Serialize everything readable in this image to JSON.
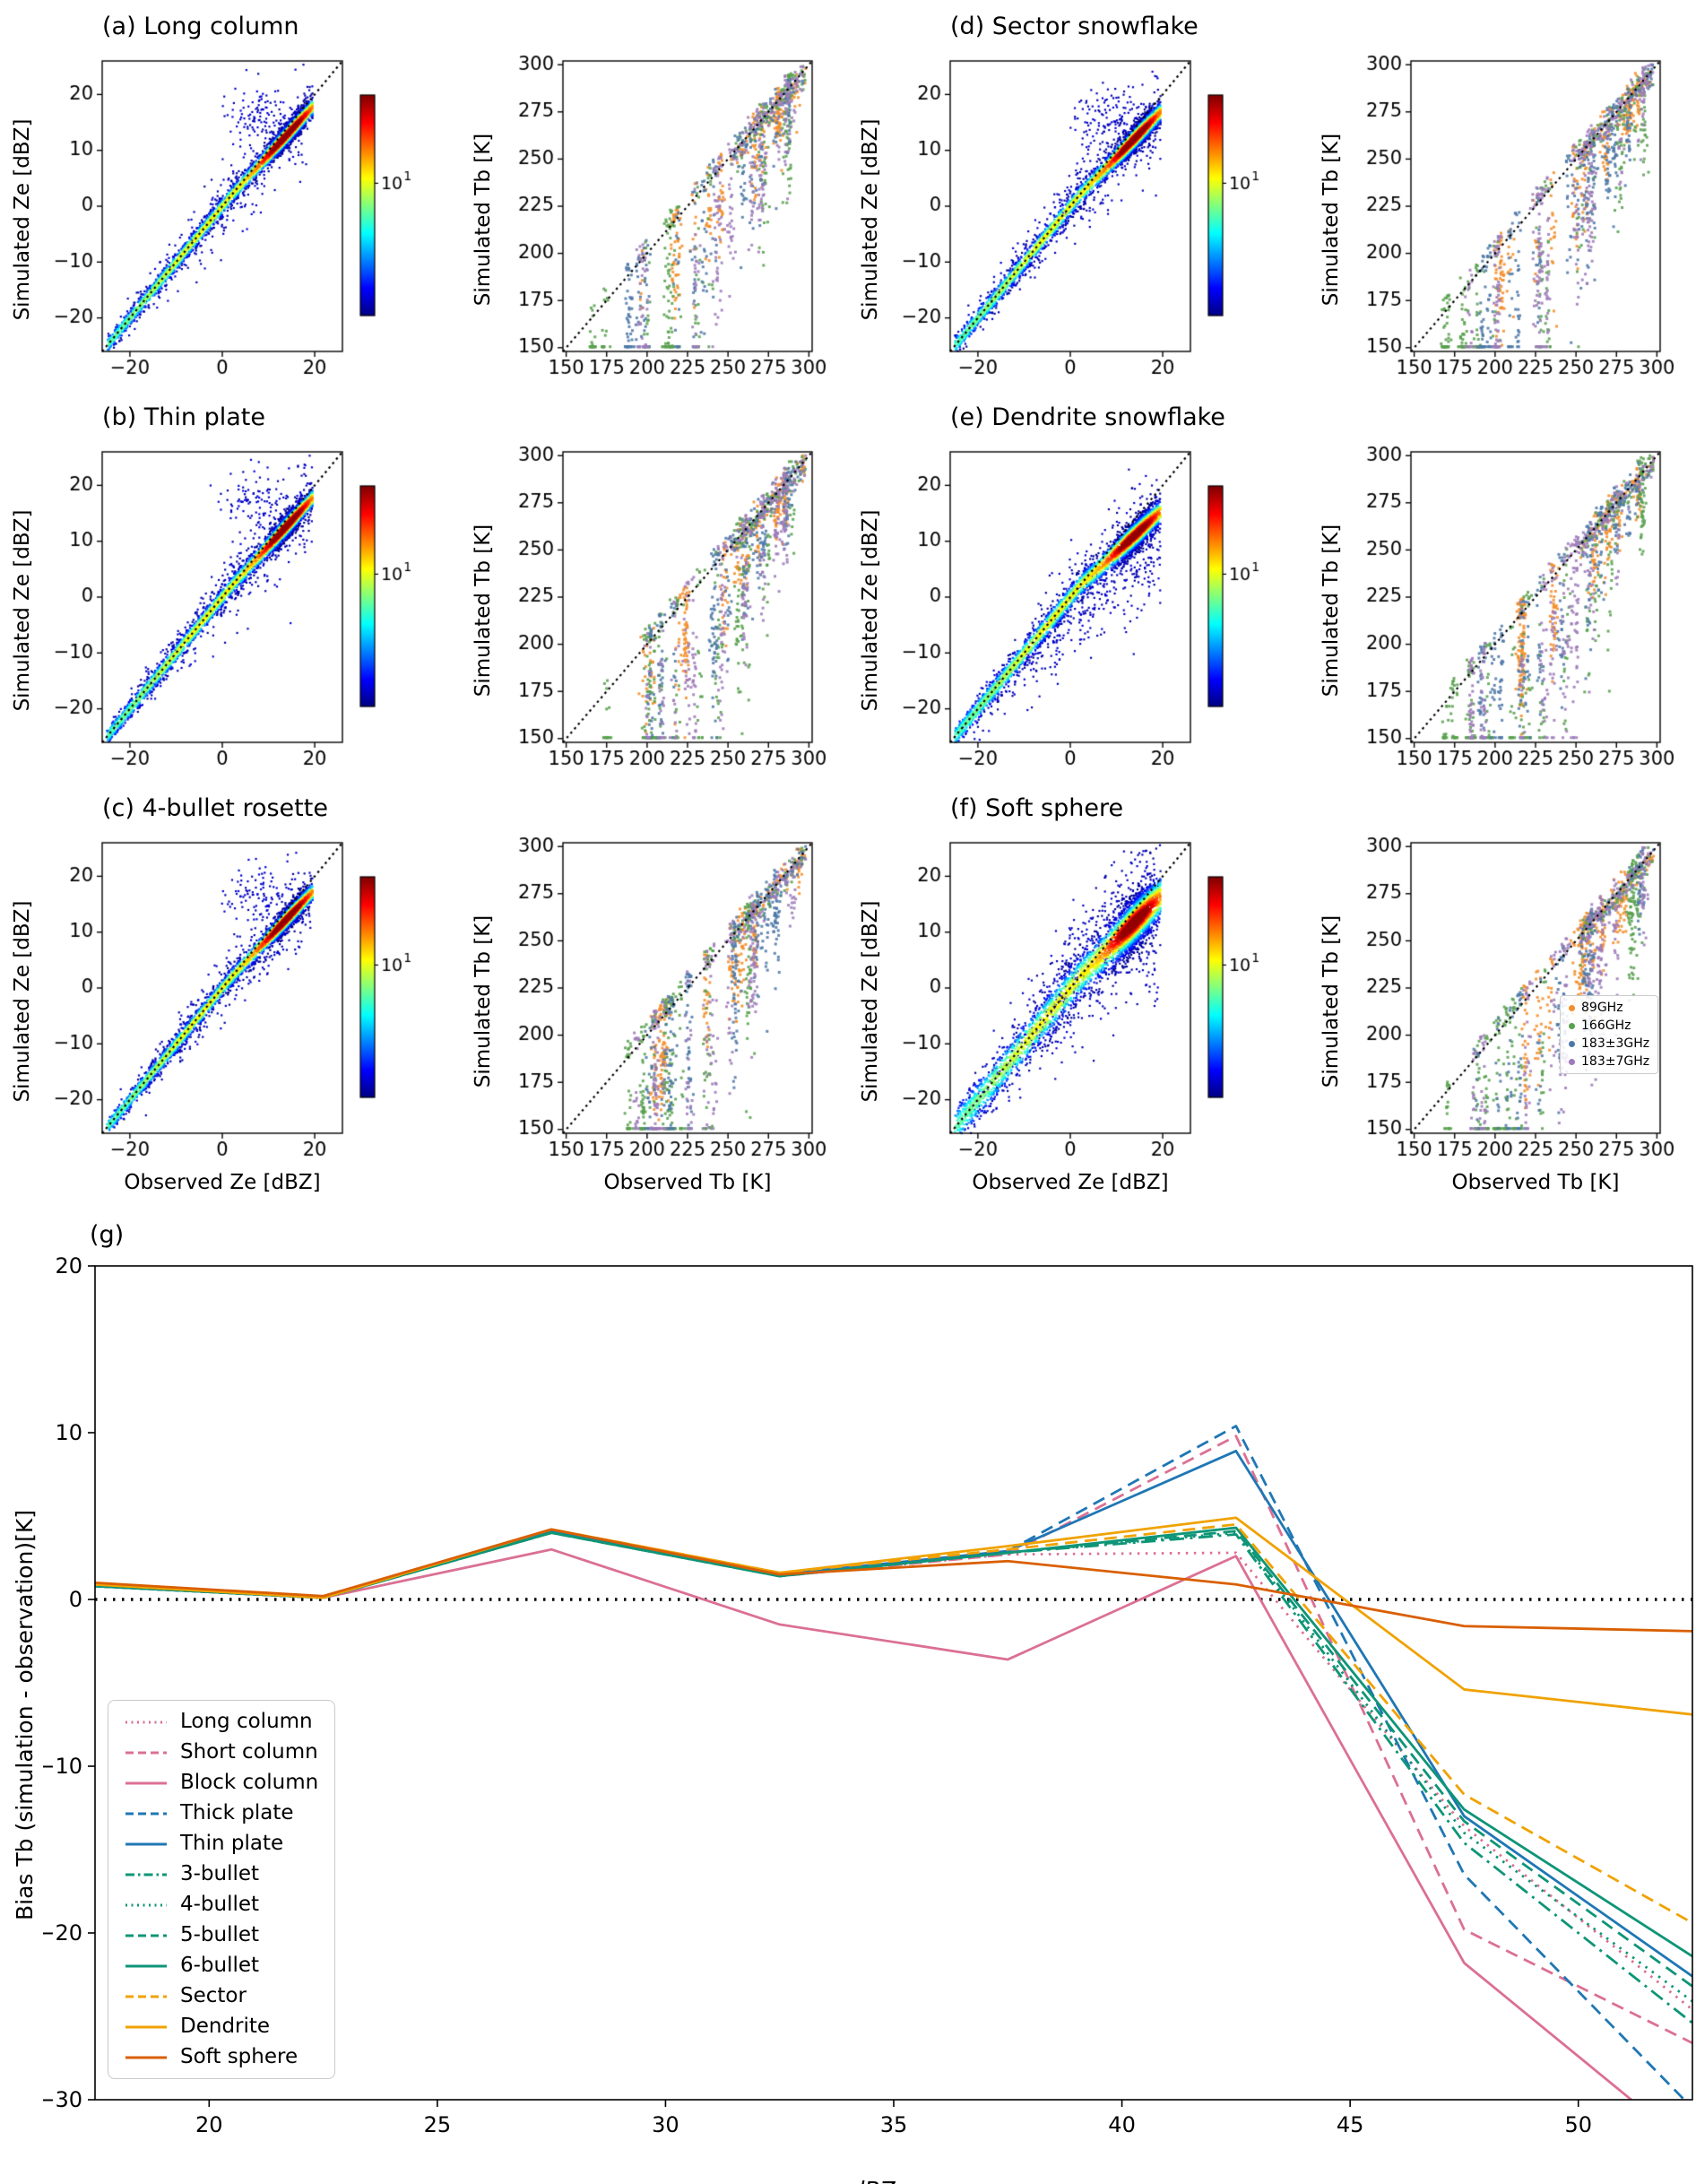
{
  "labels": {
    "ze_xlabel": "Observed Ze [dBZ]",
    "ze_ylabel": "Simulated Ze [dBZ]",
    "tb_xlabel": "Observed Tb [K]",
    "tb_ylabel": "Simulated Tb [K]",
    "colorbar_base": "10",
    "colorbar_exp": "1"
  },
  "chart_data": {
    "scatter_panels": [
      {
        "label": "(a) Long column",
        "seed": 1,
        "spread": 0.7,
        "bend": 0.1,
        "outlier": 0.1,
        "cloud": 3.2,
        "blob": true,
        "skew": false
      },
      {
        "label": "(b) Thin plate",
        "seed": 2,
        "spread": 0.75,
        "bend": 0.1,
        "outlier": 0.11,
        "cloud": 3.2,
        "blob": true,
        "skew": false
      },
      {
        "label": "(c) 4-bullet rosette",
        "seed": 3,
        "spread": 0.7,
        "bend": 0.13,
        "outlier": 0.1,
        "cloud": 3.2,
        "blob": true,
        "skew": false
      },
      {
        "label": "(d) Sector snowflake",
        "seed": 4,
        "spread": 0.8,
        "bend": 0.15,
        "outlier": 0.12,
        "cloud": 3.4,
        "blob": true,
        "skew": false
      },
      {
        "label": "(e) Dendrite snowflake",
        "seed": 5,
        "spread": 0.95,
        "bend": 0.24,
        "outlier": 0.16,
        "cloud": 4.2,
        "blob": false,
        "skew": true
      },
      {
        "label": "(f) Soft sphere",
        "seed": 6,
        "spread": 1.7,
        "bend": 0.18,
        "outlier": 0.2,
        "cloud": 5.5,
        "blob": false,
        "skew": false
      }
    ],
    "ze_axes": {
      "type": "scatter-density",
      "xlim": [
        -26,
        26
      ],
      "ylim": [
        -26,
        26
      ],
      "xticks": [
        -20,
        0,
        20
      ],
      "yticks": [
        -20,
        -10,
        0,
        10,
        20
      ],
      "colormap": "jet",
      "colorbar_tick": "10^1",
      "one_to_one_line": "black dotted"
    },
    "tb_axes": {
      "type": "scatter",
      "xlim": [
        148,
        302
      ],
      "ylim": [
        148,
        302
      ],
      "xticks": [
        150,
        175,
        200,
        225,
        250,
        275,
        300
      ],
      "yticks": [
        150,
        175,
        200,
        225,
        250,
        275,
        300
      ],
      "one_to_one_line": "black dotted"
    },
    "tb_channels": [
      {
        "label": "89GHz",
        "color": "#f28e2b",
        "streaks": 12,
        "xmin": 196,
        "xmax": 294,
        "drop": 34
      },
      {
        "label": "166GHz",
        "color": "#59a14f",
        "streaks": 15,
        "xmin": 166,
        "xmax": 294,
        "drop": 78
      },
      {
        "label": "183±3GHz",
        "color": "#4e79a7",
        "streaks": 13,
        "xmin": 186,
        "xmax": 292,
        "drop": 52
      },
      {
        "label": "183±7GHz",
        "color": "#9d7bba",
        "streaks": 13,
        "xmin": 176,
        "xmax": 292,
        "drop": 62
      }
    ],
    "bias_panel": {
      "type": "line",
      "title": "(g)",
      "xlabel_main": "dBZe",
      "xlabel_sub": "int",
      "ylabel": "Bias Tb  (simulation - observation)[K]",
      "xlim": [
        17.5,
        52.5
      ],
      "ylim": [
        -30,
        20
      ],
      "xticks": [
        20,
        25,
        30,
        35,
        40,
        45,
        50
      ],
      "yticks": [
        -30,
        -20,
        -10,
        0,
        10,
        20
      ],
      "zero_line": true,
      "x": [
        17.5,
        22.5,
        27.5,
        32.5,
        37.5,
        42.5,
        47.5,
        52.5
      ],
      "series": [
        {
          "name": "Long column",
          "color": "#db7093",
          "style": "dotted",
          "values": [
            0.8,
            0.1,
            4.0,
            1.4,
            2.7,
            2.8,
            -13.6,
            -24.6
          ]
        },
        {
          "name": "Short column",
          "color": "#db7093",
          "style": "dashed",
          "values": [
            0.8,
            0.1,
            4.0,
            1.4,
            2.7,
            9.8,
            -19.8,
            -26.6
          ]
        },
        {
          "name": "Block column",
          "color": "#db7093",
          "style": "solid",
          "values": [
            0.8,
            0.1,
            3.0,
            -1.5,
            -3.6,
            2.6,
            -21.8,
            -33.0
          ]
        },
        {
          "name": "Thick plate",
          "color": "#1f77b4",
          "style": "dashed",
          "values": [
            0.8,
            0.1,
            4.1,
            1.5,
            2.9,
            10.4,
            -16.5,
            -30.5
          ]
        },
        {
          "name": "Thin plate",
          "color": "#1f77b4",
          "style": "solid",
          "values": [
            0.8,
            0.1,
            4.1,
            1.5,
            2.9,
            8.9,
            -13.0,
            -22.6
          ]
        },
        {
          "name": "3-bullet",
          "color": "#0e9577",
          "style": "dashdot",
          "values": [
            0.8,
            0.1,
            4.0,
            1.4,
            2.8,
            3.9,
            -14.6,
            -25.4
          ]
        },
        {
          "name": "4-bullet",
          "color": "#0e9577",
          "style": "dotted",
          "values": [
            0.8,
            0.1,
            4.0,
            1.4,
            2.8,
            4.0,
            -14.0,
            -24.1
          ]
        },
        {
          "name": "5-bullet",
          "color": "#0e9577",
          "style": "dashed",
          "values": [
            0.8,
            0.1,
            4.0,
            1.4,
            2.8,
            4.1,
            -13.3,
            -23.2
          ]
        },
        {
          "name": "6-bullet",
          "color": "#0e9577",
          "style": "solid",
          "values": [
            0.8,
            0.1,
            4.0,
            1.4,
            2.8,
            4.3,
            -12.6,
            -21.4
          ]
        },
        {
          "name": "Sector",
          "color": "#f0a202",
          "style": "dashed",
          "values": [
            0.9,
            0.1,
            4.2,
            1.6,
            3.0,
            4.5,
            -11.7,
            -19.4
          ]
        },
        {
          "name": "Dendrite",
          "color": "#f0a202",
          "style": "solid",
          "values": [
            0.9,
            0.1,
            4.2,
            1.6,
            3.2,
            4.9,
            -5.4,
            -6.9
          ]
        },
        {
          "name": "Soft sphere",
          "color": "#d95f02",
          "style": "solid",
          "values": [
            1.0,
            0.2,
            4.2,
            1.5,
            2.3,
            0.9,
            -1.6,
            -1.9
          ]
        }
      ]
    }
  }
}
